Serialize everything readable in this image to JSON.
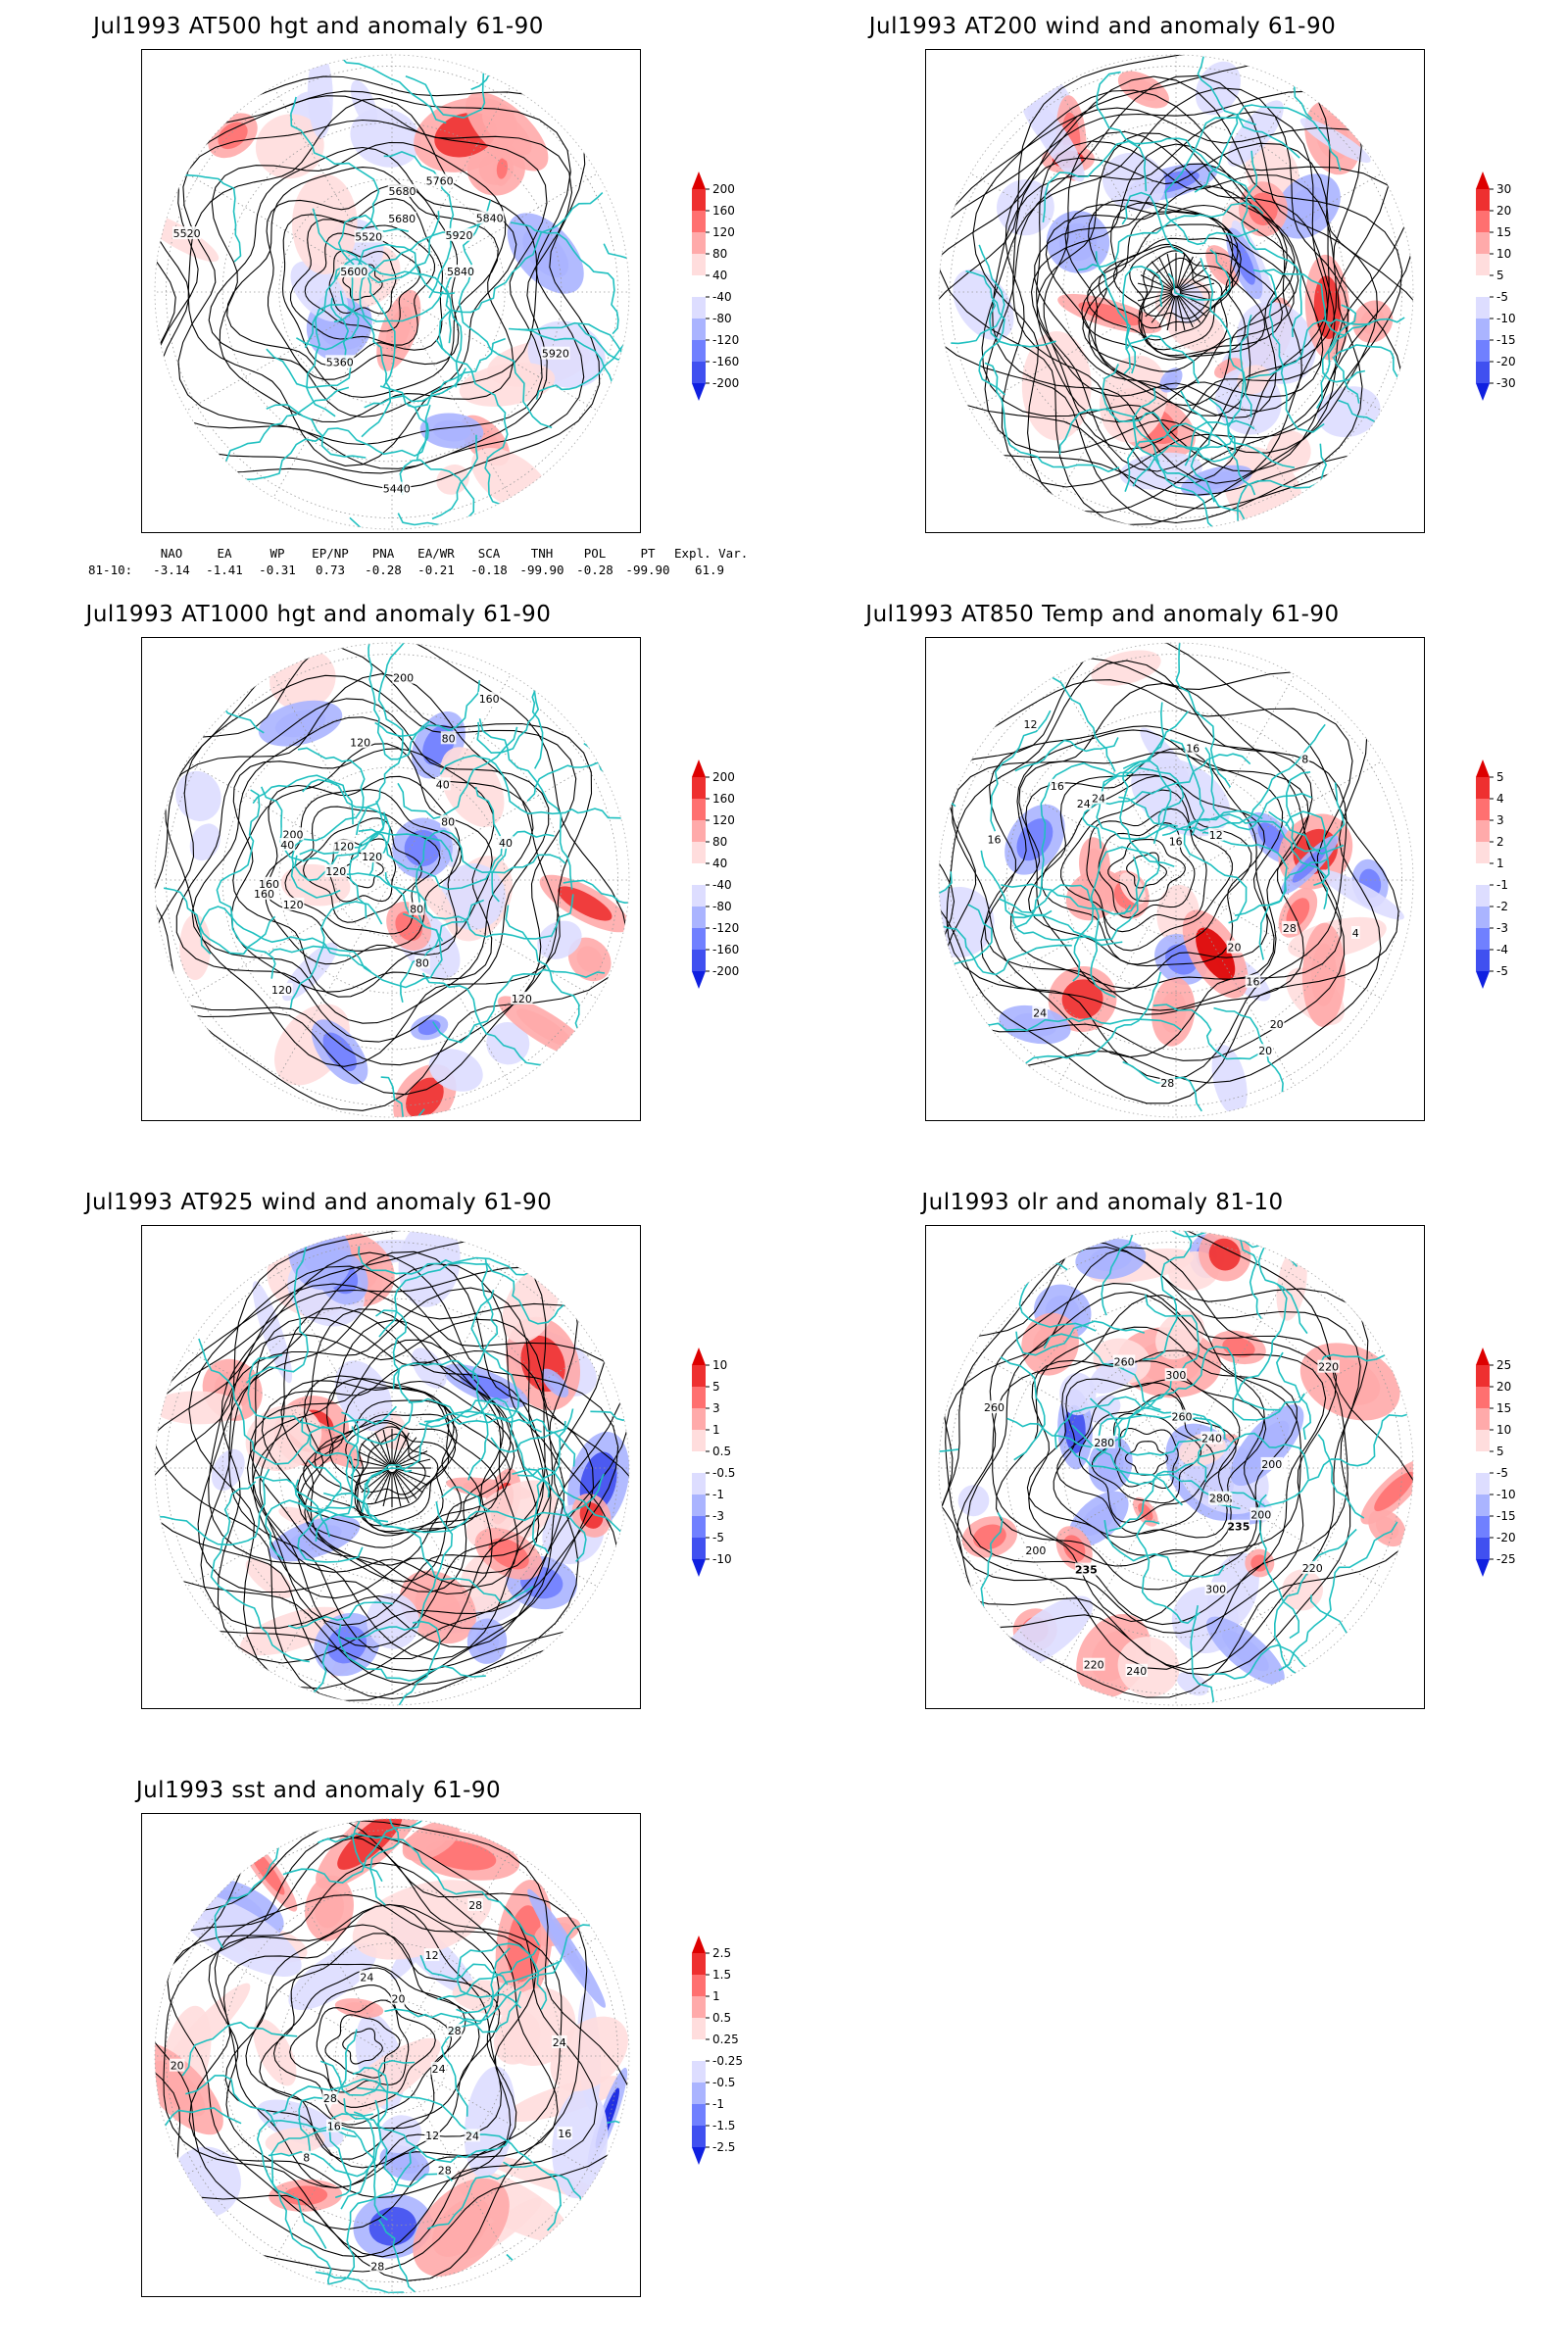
{
  "panels": [
    {
      "id": "at500",
      "title": "Jul1993 AT500 hgt and anomaly 61-90",
      "colorbar": [
        "200",
        "160",
        "120",
        "80",
        "40",
        "-40",
        "-80",
        "-120",
        "-160",
        "-200"
      ],
      "contour_labels": [
        "5360",
        "5440",
        "5520",
        "5600",
        "5680",
        "5760",
        "5840",
        "5920",
        "5680",
        "5840",
        "5520",
        "5920"
      ],
      "field_type": "height",
      "teleconnections": {
        "headers": [
          "NAO",
          "EA",
          "WP",
          "EP/NP",
          "PNA",
          "EA/WR",
          "SCA",
          "TNH",
          "POL",
          "PT",
          "Expl. Var."
        ],
        "row_label": "81-10:",
        "values": [
          "-3.14",
          "-1.41",
          "-0.31",
          "0.73",
          "-0.28",
          "-0.21",
          "-0.18",
          "-99.90",
          "-0.28",
          "-99.90",
          "61.9"
        ]
      }
    },
    {
      "id": "at200",
      "title": "Jul1993 AT200 wind and anomaly 61-90",
      "colorbar": [
        "30",
        "20",
        "15",
        "10",
        "5",
        "-5",
        "-10",
        "-15",
        "-20",
        "-30"
      ],
      "contour_labels": [],
      "field_type": "wind"
    },
    {
      "id": "at1000",
      "title": "Jul1993 AT1000 hgt and anomaly 61-90",
      "colorbar": [
        "200",
        "160",
        "120",
        "80",
        "40",
        "-40",
        "-80",
        "-120",
        "-160",
        "-200"
      ],
      "contour_labels": [
        "80",
        "120",
        "160",
        "200",
        "120",
        "80",
        "40",
        "120",
        "160",
        "40",
        "120",
        "200",
        "160",
        "120",
        "80",
        "40",
        "120",
        "80",
        "120"
      ],
      "field_type": "height"
    },
    {
      "id": "at850",
      "title": "Jul1993 AT850 Temp and anomaly 61-90",
      "colorbar": [
        "5",
        "4",
        "3",
        "2",
        "1",
        "-1",
        "-2",
        "-3",
        "-4",
        "-5"
      ],
      "contour_labels": [
        "16",
        "12",
        "16",
        "20",
        "24",
        "28",
        "8",
        "4",
        "12",
        "16",
        "20",
        "24",
        "28",
        "16",
        "16",
        "20",
        "24"
      ],
      "field_type": "temp"
    },
    {
      "id": "at925",
      "title": "Jul1993 AT925 wind and anomaly 61-90",
      "colorbar": [
        "10",
        "5",
        "3",
        "1",
        "0.5",
        "-0.5",
        "-1",
        "-3",
        "-5",
        "-10"
      ],
      "contour_labels": [],
      "field_type": "wind"
    },
    {
      "id": "olr",
      "title": "Jul1993 olr and anomaly 81-10",
      "colorbar": [
        "25",
        "20",
        "15",
        "10",
        "5",
        "-5",
        "-10",
        "-15",
        "-20",
        "-25"
      ],
      "contour_labels": [
        "235",
        "220",
        "200",
        "260",
        "240",
        "280",
        "300",
        "235",
        "220",
        "260",
        "200",
        "240",
        "235",
        "260",
        "280",
        "300",
        "220",
        "200"
      ],
      "field_type": "olr"
    },
    {
      "id": "sst",
      "title": "Jul1993 sst and anomaly 61-90",
      "colorbar": [
        "2.5",
        "1.5",
        "1",
        "0.5",
        "0.25",
        "-0.25",
        "-0.5",
        "-1",
        "-1.5",
        "-2.5"
      ],
      "contour_labels": [
        "28",
        "24",
        "20",
        "16",
        "12",
        "24",
        "28",
        "20",
        "16",
        "12",
        "8",
        "28",
        "24",
        "28",
        "24",
        "28"
      ],
      "field_type": "sst"
    }
  ],
  "colors": {
    "coast": "#20c0c0",
    "contour": "#000000",
    "pos": [
      "#ffdddd",
      "#ffaaaa",
      "#ff7070",
      "#ee3030",
      "#dd0000"
    ],
    "neg": [
      "#ddddff",
      "#aab4ff",
      "#7080ff",
      "#4050f0",
      "#1020e0"
    ]
  }
}
